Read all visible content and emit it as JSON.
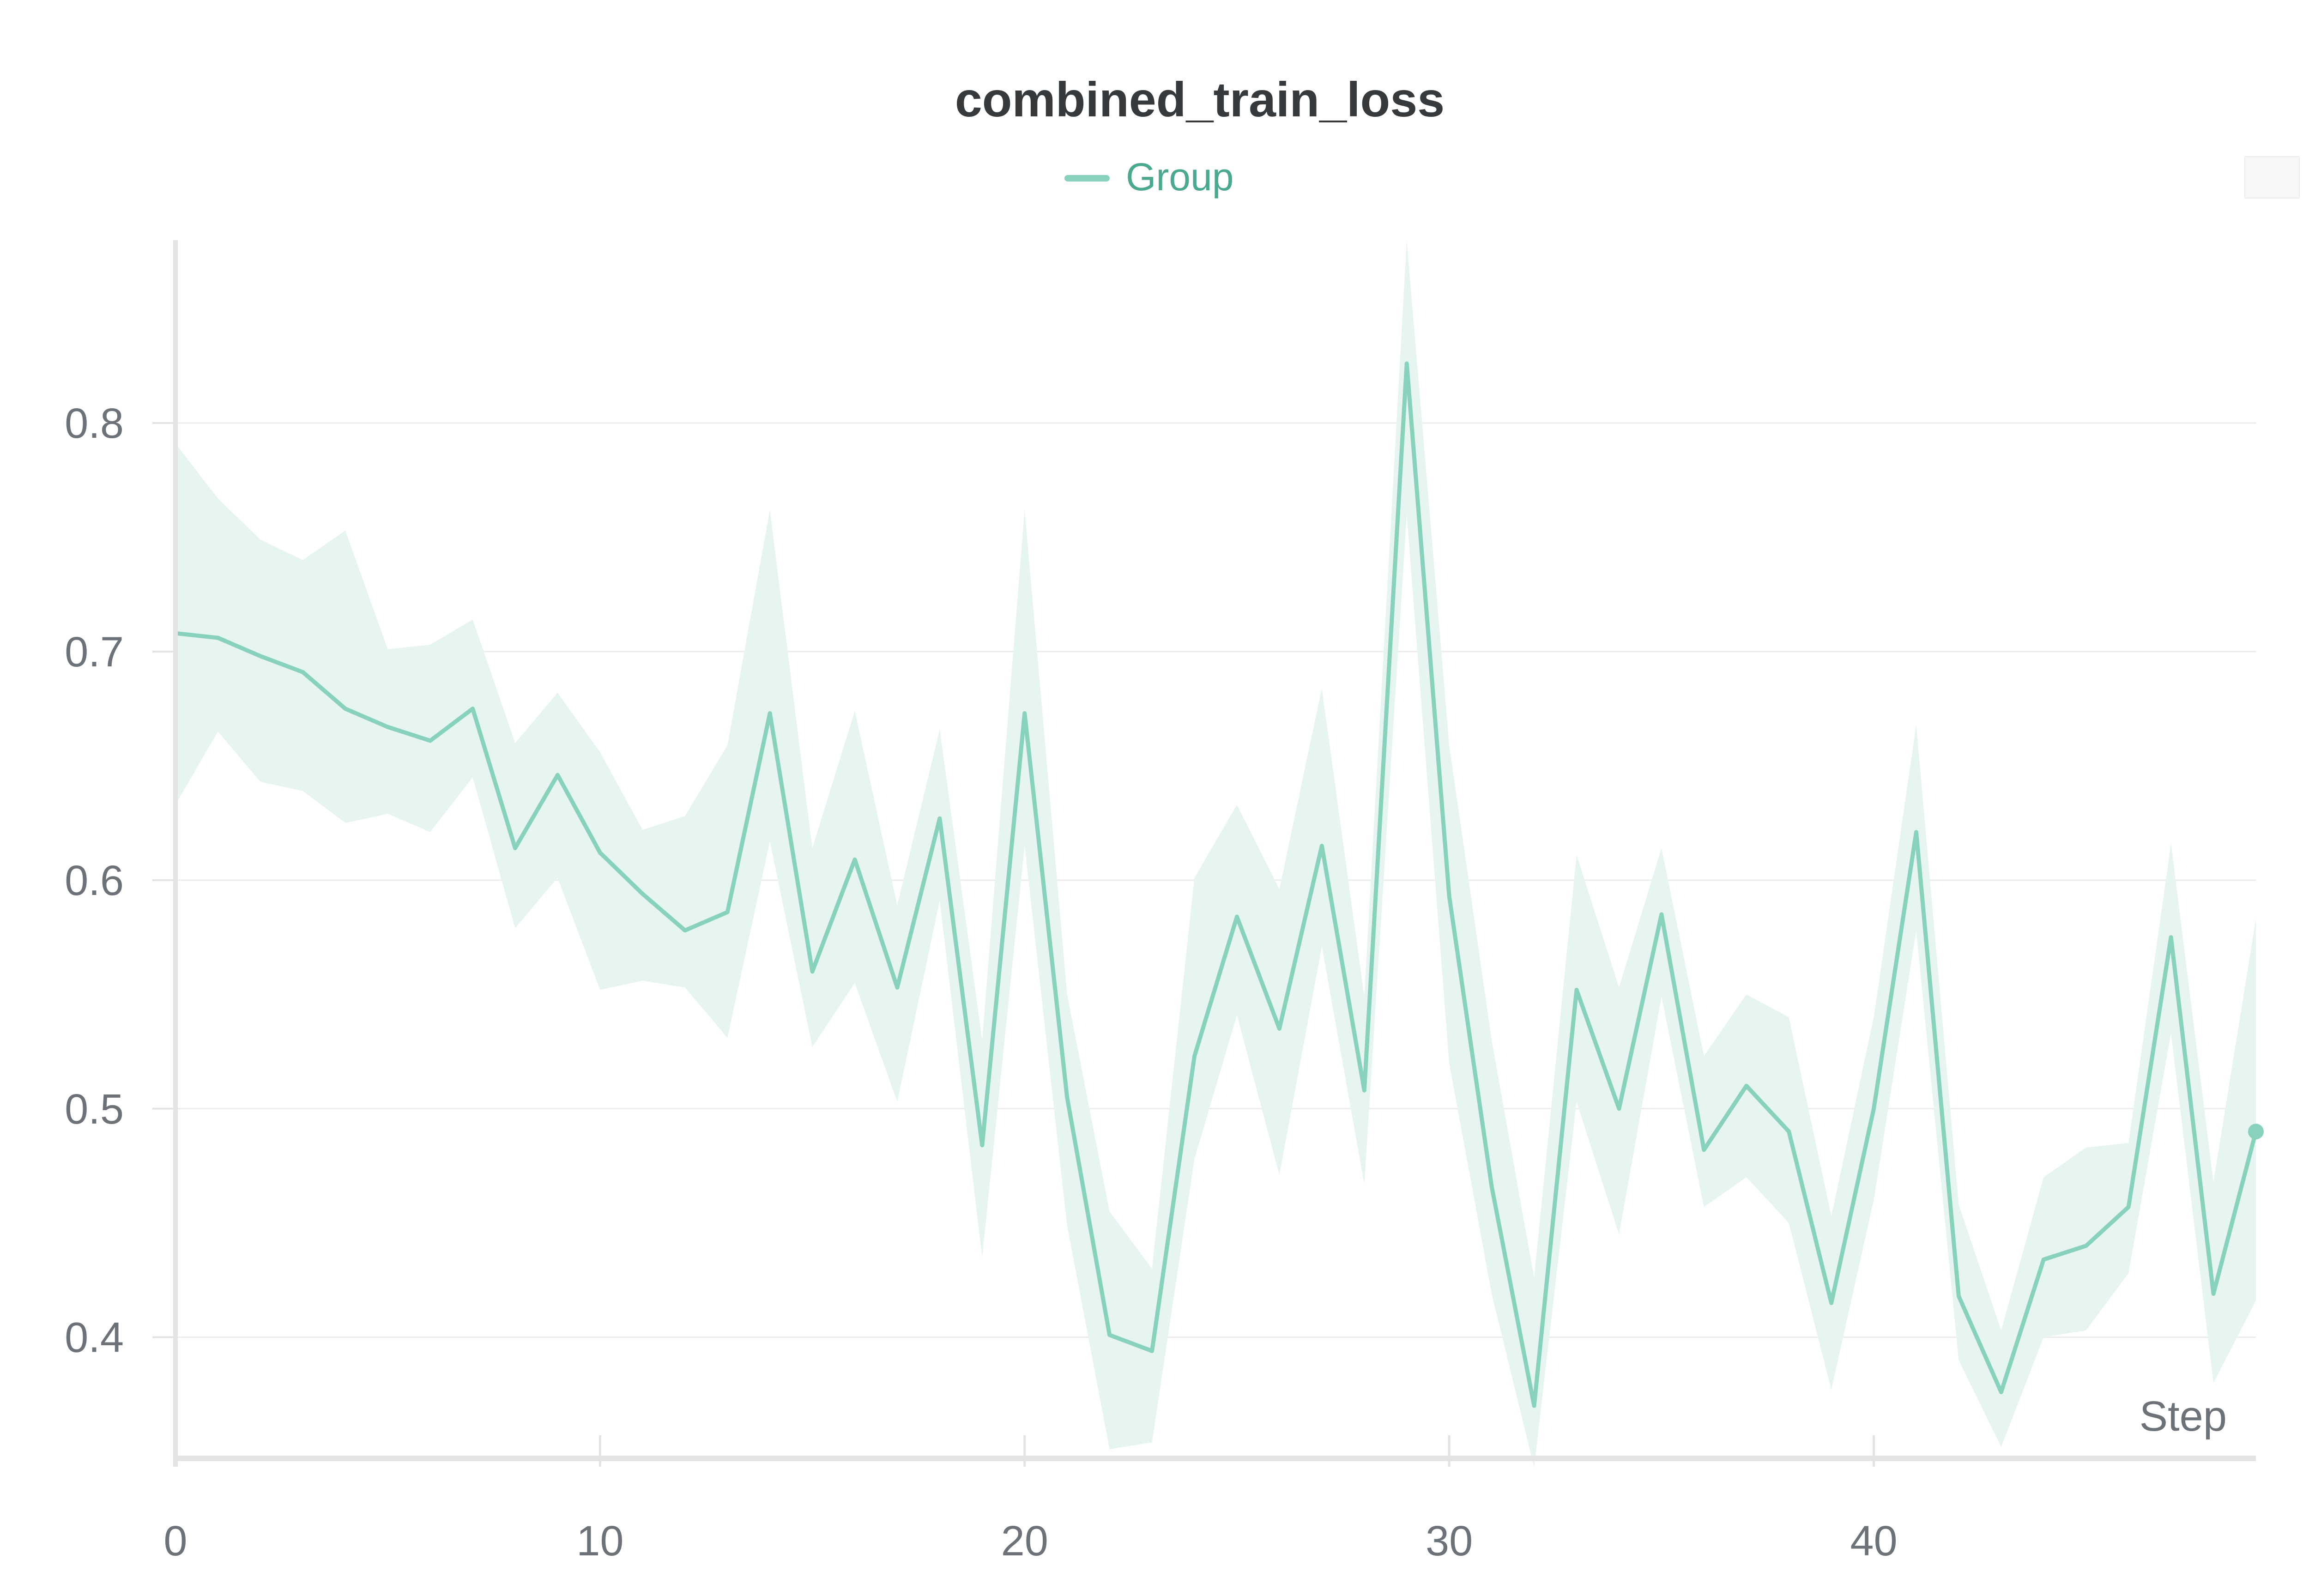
{
  "chart_data": {
    "type": "line",
    "title": "combined_train_loss",
    "xlabel": "Step",
    "ylabel": "",
    "legend": {
      "position": "top-center",
      "entries": [
        "Group"
      ]
    },
    "x_ticks": [
      "0",
      "10",
      "20",
      "30",
      "40"
    ],
    "y_ticks": [
      "0.4",
      "0.5",
      "0.6",
      "0.7",
      "0.8"
    ],
    "xlim": [
      0,
      49
    ],
    "ylim": [
      0.347,
      0.88
    ],
    "grid": "horizontal",
    "colors": {
      "line": "#87d1bd",
      "band": "#e6f5f0",
      "legend_text": "#4aa98f",
      "title": "#363a3d",
      "tick_text": "#6d7278",
      "axis": "#e3e3e5",
      "grid": "#ececee"
    },
    "series": [
      {
        "name": "Group",
        "x": [
          0,
          1,
          2,
          3,
          4,
          5,
          6,
          7,
          8,
          9,
          10,
          11,
          12,
          13,
          14,
          15,
          16,
          17,
          18,
          19,
          20,
          21,
          22,
          23,
          24,
          25,
          26,
          27,
          28,
          29,
          30,
          31,
          32,
          33,
          34,
          35,
          36,
          37,
          38,
          39,
          40,
          41,
          42,
          43,
          44,
          45,
          46,
          47,
          48,
          49
        ],
        "y": [
          0.708,
          0.706,
          0.698,
          0.691,
          0.675,
          0.667,
          0.661,
          0.675,
          0.614,
          0.646,
          0.612,
          0.594,
          0.578,
          0.586,
          0.673,
          0.56,
          0.609,
          0.553,
          0.627,
          0.484,
          0.673,
          0.505,
          0.401,
          0.394,
          0.523,
          0.584,
          0.535,
          0.615,
          0.508,
          0.826,
          0.593,
          0.466,
          0.37,
          0.552,
          0.5,
          0.585,
          0.482,
          0.51,
          0.49,
          0.415,
          0.5,
          0.621,
          0.418,
          0.376,
          0.434,
          0.44,
          0.457,
          0.575,
          0.419,
          0.49
        ],
        "y_min": [
          0.633,
          0.665,
          0.643,
          0.639,
          0.625,
          0.629,
          0.621,
          0.645,
          0.579,
          0.601,
          0.552,
          0.556,
          0.553,
          0.531,
          0.617,
          0.527,
          0.555,
          0.503,
          0.591,
          0.435,
          0.615,
          0.449,
          0.351,
          0.354,
          0.478,
          0.541,
          0.471,
          0.571,
          0.467,
          0.76,
          0.52,
          0.419,
          0.343,
          0.503,
          0.445,
          0.549,
          0.457,
          0.47,
          0.45,
          0.377,
          0.46,
          0.578,
          0.39,
          0.352,
          0.4,
          0.403,
          0.428,
          0.533,
          0.38,
          0.416
        ],
        "y_max": [
          0.791,
          0.767,
          0.749,
          0.74,
          0.753,
          0.701,
          0.703,
          0.714,
          0.66,
          0.682,
          0.656,
          0.622,
          0.628,
          0.659,
          0.762,
          0.614,
          0.674,
          0.589,
          0.666,
          0.53,
          0.762,
          0.55,
          0.455,
          0.43,
          0.601,
          0.633,
          0.596,
          0.684,
          0.549,
          0.88,
          0.659,
          0.53,
          0.426,
          0.611,
          0.553,
          0.614,
          0.523,
          0.55,
          0.54,
          0.453,
          0.54,
          0.668,
          0.458,
          0.403,
          0.47,
          0.483,
          0.485,
          0.616,
          0.468,
          0.583
        ]
      }
    ]
  }
}
